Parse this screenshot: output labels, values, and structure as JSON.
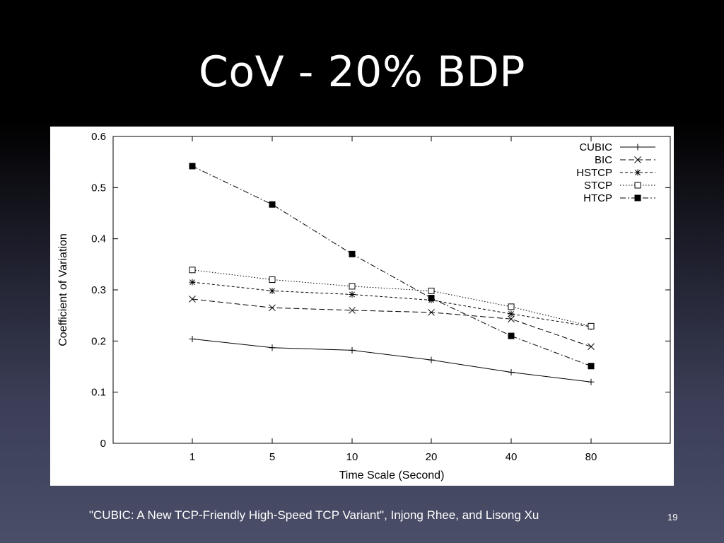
{
  "slide": {
    "title": "CoV - 20% BDP",
    "caption": "\"CUBIC: A New TCP-Friendly High-Speed TCP Variant\", Injong Rhee, and Lisong Xu",
    "page_number": "19"
  },
  "chart_data": {
    "type": "line",
    "title": "",
    "xlabel": "Time Scale (Second)",
    "ylabel": "Coefficient of Variation",
    "categories": [
      "1",
      "5",
      "10",
      "20",
      "40",
      "80"
    ],
    "ylim": [
      0,
      0.6
    ],
    "yticks": [
      "0",
      "0.1",
      "0.2",
      "0.3",
      "0.4",
      "0.5",
      "0.6"
    ],
    "grid": false,
    "legend_position": "top-right",
    "series": [
      {
        "name": "CUBIC",
        "marker": "plus",
        "dash": "solid",
        "values": [
          0.204,
          0.187,
          0.182,
          0.163,
          0.139,
          0.12
        ]
      },
      {
        "name": "BIC",
        "marker": "cross",
        "dash": "dashed",
        "values": [
          0.282,
          0.265,
          0.26,
          0.256,
          0.243,
          0.189
        ]
      },
      {
        "name": "HSTCP",
        "marker": "star",
        "dash": "short-dash",
        "values": [
          0.315,
          0.298,
          0.291,
          0.28,
          0.253,
          0.228
        ]
      },
      {
        "name": "STCP",
        "marker": "open-square",
        "dash": "dotted",
        "values": [
          0.339,
          0.32,
          0.307,
          0.298,
          0.267,
          0.229
        ]
      },
      {
        "name": "HTCP",
        "marker": "filled-square",
        "dash": "dash-dot",
        "values": [
          0.542,
          0.467,
          0.37,
          0.284,
          0.21,
          0.151
        ]
      }
    ],
    "line_color": "#000000"
  }
}
